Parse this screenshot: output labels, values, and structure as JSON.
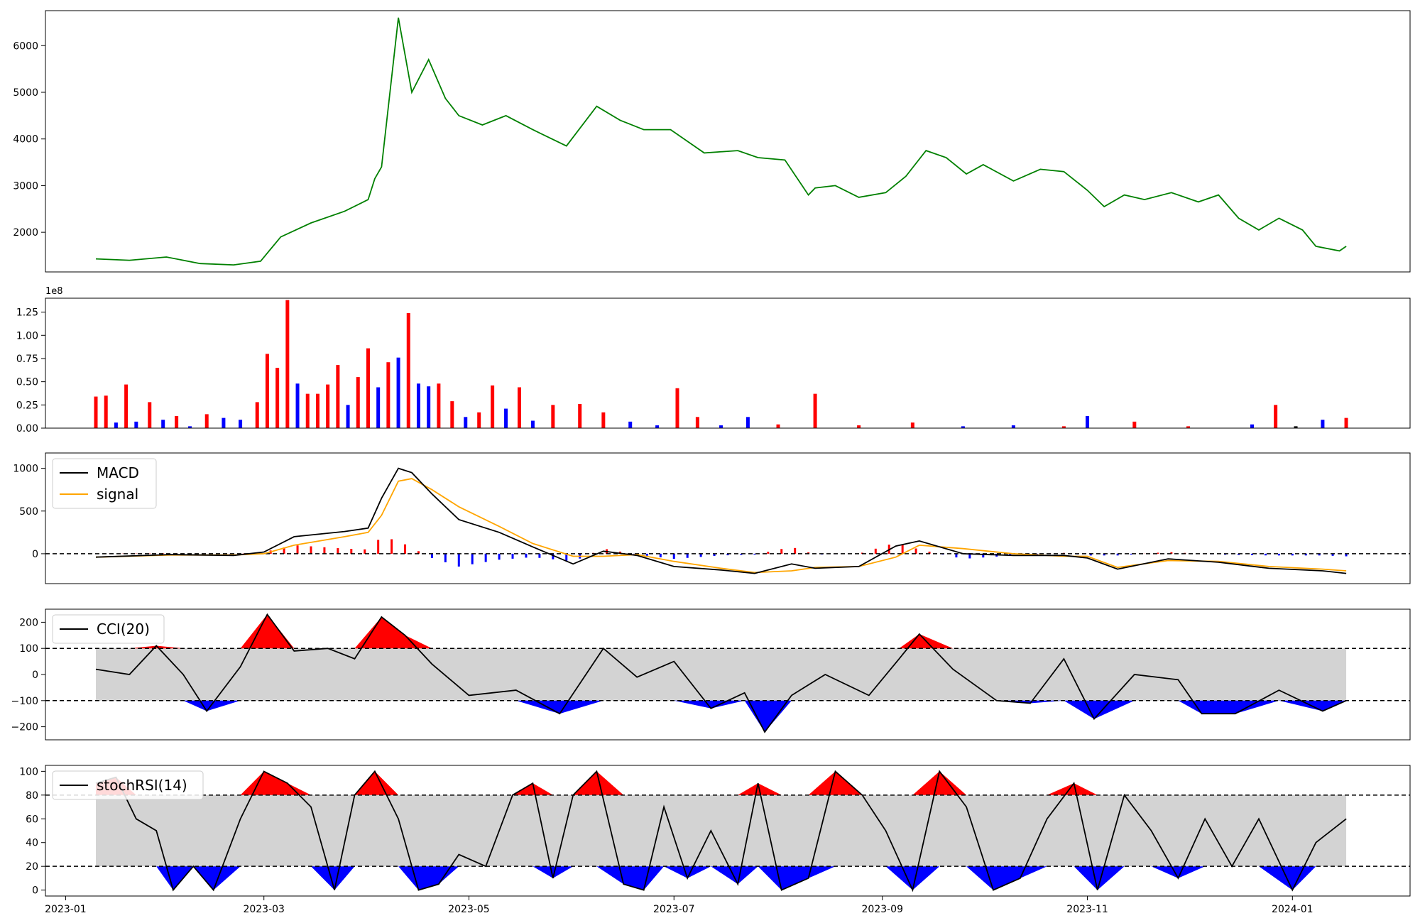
{
  "figure": {
    "x_ticks": [
      "2023-01",
      "2023-03",
      "2023-05",
      "2023-07",
      "2023-09",
      "2023-11",
      "2024-01"
    ]
  },
  "chart_data": [
    {
      "type": "line",
      "panel": "price",
      "color": "#008000",
      "ylim": [
        1150,
        6750
      ],
      "yticks": [
        "2000",
        "3000",
        "4000",
        "5000",
        "6000"
      ],
      "grid": false,
      "series": [
        {
          "x": [
            "2023-01-10",
            "2023-01-20",
            "2023-01-31",
            "2023-02-10",
            "2023-02-20",
            "2023-02-28",
            "2023-03-06",
            "2023-03-15",
            "2023-03-25",
            "2023-04-01",
            "2023-04-03",
            "2023-04-05",
            "2023-04-10",
            "2023-04-14",
            "2023-04-19",
            "2023-04-24",
            "2023-04-28",
            "2023-05-05",
            "2023-05-12",
            "2023-05-20",
            "2023-05-30",
            "2023-06-08",
            "2023-06-15",
            "2023-06-22",
            "2023-06-30",
            "2023-07-10",
            "2023-07-20",
            "2023-07-26",
            "2023-08-03",
            "2023-08-10",
            "2023-08-12",
            "2023-08-18",
            "2023-08-25",
            "2023-09-02",
            "2023-09-08",
            "2023-09-14",
            "2023-09-20",
            "2023-09-26",
            "2023-10-01",
            "2023-10-10",
            "2023-10-18",
            "2023-10-25",
            "2023-11-01",
            "2023-11-06",
            "2023-11-12",
            "2023-11-18",
            "2023-11-26",
            "2023-12-04",
            "2023-12-10",
            "2023-12-16",
            "2023-12-22",
            "2023-12-28",
            "2024-01-04",
            "2024-01-08",
            "2024-01-15",
            "2024-01-17"
          ],
          "values": [
            1430,
            1400,
            1470,
            1330,
            1300,
            1380,
            1900,
            2200,
            2450,
            2700,
            3150,
            3400,
            6600,
            5000,
            5700,
            4870,
            4500,
            4300,
            4500,
            4200,
            3850,
            4700,
            4400,
            4200,
            4200,
            3700,
            3750,
            3600,
            3550,
            2800,
            2950,
            3000,
            2750,
            2850,
            3200,
            3750,
            3600,
            3250,
            3450,
            3100,
            3350,
            3300,
            2900,
            2550,
            2800,
            2700,
            2850,
            2650,
            2800,
            2300,
            2050,
            2300,
            2050,
            1700,
            1600,
            1700
          ]
        }
      ]
    },
    {
      "type": "bar",
      "panel": "volume",
      "scale_label": "1e8",
      "ylim": [
        0,
        1.4
      ],
      "yticks": [
        "0.00",
        "0.25",
        "0.50",
        "0.75",
        "1.00",
        "1.25"
      ],
      "colors": {
        "up": "#ff0000",
        "down": "#0000ff",
        "flat": "#000000"
      },
      "series": [
        {
          "x": [
            "2023-01-10",
            "2023-01-13",
            "2023-01-16",
            "2023-01-19",
            "2023-01-22",
            "2023-01-26",
            "2023-01-30",
            "2023-02-03",
            "2023-02-07",
            "2023-02-12",
            "2023-02-17",
            "2023-02-22",
            "2023-02-27",
            "2023-03-02",
            "2023-03-05",
            "2023-03-08",
            "2023-03-11",
            "2023-03-14",
            "2023-03-17",
            "2023-03-20",
            "2023-03-23",
            "2023-03-26",
            "2023-03-29",
            "2023-04-01",
            "2023-04-04",
            "2023-04-07",
            "2023-04-10",
            "2023-04-13",
            "2023-04-16",
            "2023-04-19",
            "2023-04-22",
            "2023-04-26",
            "2023-04-30",
            "2023-05-04",
            "2023-05-08",
            "2023-05-12",
            "2023-05-16",
            "2023-05-20",
            "2023-05-26",
            "2023-06-03",
            "2023-06-10",
            "2023-06-18",
            "2023-06-26",
            "2023-07-02",
            "2023-07-08",
            "2023-07-15",
            "2023-07-23",
            "2023-08-01",
            "2023-08-12",
            "2023-08-25",
            "2023-09-10",
            "2023-09-25",
            "2023-10-10",
            "2023-10-25",
            "2023-11-01",
            "2023-11-15",
            "2023-12-01",
            "2023-12-20",
            "2023-12-27",
            "2024-01-02",
            "2024-01-10",
            "2024-01-17"
          ],
          "values": [
            0.34,
            0.35,
            0.06,
            0.47,
            0.07,
            0.28,
            0.09,
            0.13,
            0.02,
            0.15,
            0.11,
            0.09,
            0.28,
            0.8,
            0.65,
            1.38,
            0.48,
            0.37,
            0.37,
            0.47,
            0.68,
            0.25,
            0.55,
            0.86,
            0.44,
            0.71,
            0.76,
            1.24,
            0.48,
            0.45,
            0.48,
            0.29,
            0.12,
            0.17,
            0.46,
            0.21,
            0.44,
            0.08,
            0.25,
            0.26,
            0.17,
            0.07,
            0.03,
            0.43,
            0.12,
            0.03,
            0.12,
            0.04,
            0.37,
            0.03,
            0.06,
            0.02,
            0.03,
            0.02,
            0.13,
            0.07,
            0.02,
            0.04,
            0.25,
            0.02,
            0.09,
            0.11
          ],
          "direction": [
            "up",
            "up",
            "down",
            "up",
            "down",
            "up",
            "down",
            "up",
            "down",
            "up",
            "down",
            "down",
            "up",
            "up",
            "up",
            "up",
            "down",
            "up",
            "up",
            "up",
            "up",
            "down",
            "up",
            "up",
            "down",
            "up",
            "down",
            "up",
            "down",
            "down",
            "up",
            "up",
            "down",
            "up",
            "up",
            "down",
            "up",
            "down",
            "up",
            "up",
            "up",
            "down",
            "down",
            "up",
            "up",
            "down",
            "down",
            "up",
            "up",
            "up",
            "up",
            "down",
            "down",
            "up",
            "down",
            "up",
            "up",
            "down",
            "up",
            "flat",
            "down",
            "up"
          ]
        }
      ]
    },
    {
      "type": "line",
      "panel": "macd",
      "ylim": [
        -350,
        1180
      ],
      "yticks": [
        "0",
        "500",
        "1000"
      ],
      "hline": 0,
      "legend": {
        "placement": "upper-left"
      },
      "colors": {
        "macd": "#000000",
        "signal": "#ffa500",
        "hist_pos": "#ff0000",
        "hist_neg": "#0000ff"
      },
      "x": [
        "2023-01-10",
        "2023-02-01",
        "2023-02-20",
        "2023-03-01",
        "2023-03-10",
        "2023-03-25",
        "2023-04-01",
        "2023-04-05",
        "2023-04-10",
        "2023-04-14",
        "2023-04-20",
        "2023-04-28",
        "2023-05-10",
        "2023-05-20",
        "2023-06-01",
        "2023-06-10",
        "2023-06-20",
        "2023-07-01",
        "2023-07-15",
        "2023-07-25",
        "2023-08-05",
        "2023-08-12",
        "2023-08-25",
        "2023-09-05",
        "2023-09-12",
        "2023-09-25",
        "2023-10-10",
        "2023-10-25",
        "2023-11-01",
        "2023-11-10",
        "2023-11-25",
        "2023-12-10",
        "2023-12-25",
        "2024-01-10",
        "2024-01-17"
      ],
      "series": [
        {
          "name": "MACD",
          "values": [
            -40,
            -10,
            -20,
            20,
            200,
            260,
            300,
            650,
            1000,
            950,
            700,
            400,
            250,
            80,
            -120,
            30,
            -20,
            -150,
            -190,
            -230,
            -120,
            -170,
            -150,
            90,
            150,
            0,
            -20,
            -20,
            -50,
            -180,
            -60,
            -100,
            -170,
            -200,
            -230
          ]
        },
        {
          "name": "signal",
          "values": [
            -40,
            -15,
            -15,
            0,
            100,
            200,
            250,
            450,
            850,
            880,
            750,
            550,
            320,
            120,
            -30,
            -30,
            -10,
            -90,
            -170,
            -220,
            -200,
            -160,
            -150,
            -40,
            100,
            60,
            0,
            -30,
            -30,
            -160,
            -80,
            -90,
            -150,
            -180,
            -200
          ]
        }
      ]
    },
    {
      "type": "area",
      "panel": "cci",
      "ylim": [
        -250,
        250
      ],
      "yticks": [
        "200",
        "100",
        "0",
        "−100",
        "−200"
      ],
      "bands": [
        -100,
        100
      ],
      "legend": {
        "placement": "upper-left"
      },
      "colors": {
        "line": "#000000",
        "over": "#ff0000",
        "under": "#0000ff",
        "band": "#d3d3d3"
      },
      "series": [
        {
          "name": "CCI(20)",
          "x": [
            "2023-01-10",
            "2023-01-20",
            "2023-01-28",
            "2023-02-05",
            "2023-02-12",
            "2023-02-22",
            "2023-03-02",
            "2023-03-10",
            "2023-03-20",
            "2023-03-28",
            "2023-04-05",
            "2023-04-12",
            "2023-04-20",
            "2023-05-01",
            "2023-05-15",
            "2023-05-28",
            "2023-06-10",
            "2023-06-20",
            "2023-07-01",
            "2023-07-12",
            "2023-07-22",
            "2023-07-28",
            "2023-08-05",
            "2023-08-15",
            "2023-08-28",
            "2023-09-06",
            "2023-09-12",
            "2023-09-22",
            "2023-10-05",
            "2023-10-15",
            "2023-10-25",
            "2023-11-03",
            "2023-11-15",
            "2023-11-28",
            "2023-12-05",
            "2023-12-15",
            "2023-12-28",
            "2024-01-10",
            "2024-01-17"
          ],
          "values": [
            20,
            0,
            110,
            0,
            -140,
            30,
            230,
            90,
            100,
            60,
            220,
            150,
            40,
            -80,
            -60,
            -150,
            100,
            -10,
            50,
            -130,
            -70,
            -220,
            -80,
            0,
            -80,
            60,
            155,
            20,
            -100,
            -110,
            60,
            -170,
            0,
            -20,
            -150,
            -150,
            -60,
            -140,
            -100
          ]
        }
      ]
    },
    {
      "type": "area",
      "panel": "stochrsi",
      "ylim": [
        -5,
        105
      ],
      "yticks": [
        "100",
        "80",
        "60",
        "40",
        "20",
        "0"
      ],
      "bands": [
        20,
        80
      ],
      "legend": {
        "placement": "upper-left"
      },
      "colors": {
        "line": "#000000",
        "over": "#ff0000",
        "under": "#0000ff",
        "band": "#d3d3d3"
      },
      "series": [
        {
          "name": "stochRSI(14)",
          "x": [
            "2023-01-10",
            "2023-01-16",
            "2023-01-22",
            "2023-01-28",
            "2023-02-02",
            "2023-02-08",
            "2023-02-14",
            "2023-02-22",
            "2023-03-01",
            "2023-03-08",
            "2023-03-15",
            "2023-03-22",
            "2023-03-28",
            "2023-04-03",
            "2023-04-10",
            "2023-04-16",
            "2023-04-22",
            "2023-04-28",
            "2023-05-06",
            "2023-05-14",
            "2023-05-20",
            "2023-05-26",
            "2023-06-01",
            "2023-06-08",
            "2023-06-16",
            "2023-06-22",
            "2023-06-28",
            "2023-07-05",
            "2023-07-12",
            "2023-07-20",
            "2023-07-26",
            "2023-08-02",
            "2023-08-10",
            "2023-08-18",
            "2023-08-26",
            "2023-09-02",
            "2023-09-10",
            "2023-09-18",
            "2023-09-26",
            "2023-10-04",
            "2023-10-12",
            "2023-10-20",
            "2023-10-28",
            "2023-11-04",
            "2023-11-12",
            "2023-11-20",
            "2023-11-28",
            "2023-12-06",
            "2023-12-14",
            "2023-12-22",
            "2024-01-01",
            "2024-01-08",
            "2024-01-17"
          ],
          "values": [
            90,
            95,
            60,
            50,
            0,
            20,
            0,
            60,
            100,
            90,
            70,
            0,
            80,
            100,
            60,
            0,
            5,
            30,
            20,
            80,
            90,
            10,
            80,
            100,
            5,
            0,
            70,
            10,
            50,
            5,
            90,
            0,
            10,
            100,
            80,
            50,
            0,
            100,
            70,
            0,
            10,
            60,
            90,
            0,
            80,
            50,
            10,
            60,
            20,
            60,
            0,
            40,
            60
          ]
        }
      ]
    }
  ]
}
